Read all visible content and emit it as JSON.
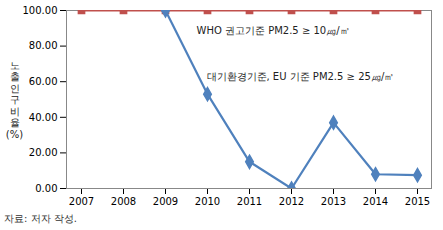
{
  "chart_data": {
    "type": "line",
    "y_label": "노출인구비율(%)",
    "caption": "자료: 저자 작성.",
    "categories": [
      "2007",
      "2008",
      "2009",
      "2010",
      "2011",
      "2012",
      "2013",
      "2014",
      "2015"
    ],
    "series": [
      {
        "name": "WHO 권고기준 PM2.5 ≥ 10㎍/㎥",
        "color": "#c0504d",
        "marker": "square",
        "line_style": "solid",
        "values": [
          100,
          100,
          100,
          100,
          100,
          100,
          100,
          100,
          100
        ]
      },
      {
        "name": "대기환경기준, EU 기준 PM2.5 ≥ 25㎍/㎥",
        "color": "#4f81bd",
        "marker": "diamond",
        "line_style": "solid",
        "values": [
          null,
          null,
          100,
          53,
          15,
          0,
          37,
          8,
          7.5
        ]
      }
    ],
    "ylim": [
      0,
      100
    ],
    "yticks": [
      {
        "value": 0,
        "label": "0.00"
      },
      {
        "value": 20,
        "label": "20.00"
      },
      {
        "value": 40,
        "label": "40.00"
      },
      {
        "value": 60,
        "label": "60.00"
      },
      {
        "value": 80,
        "label": "80.00"
      },
      {
        "value": 100,
        "label": "100.00"
      }
    ],
    "grid": false
  }
}
